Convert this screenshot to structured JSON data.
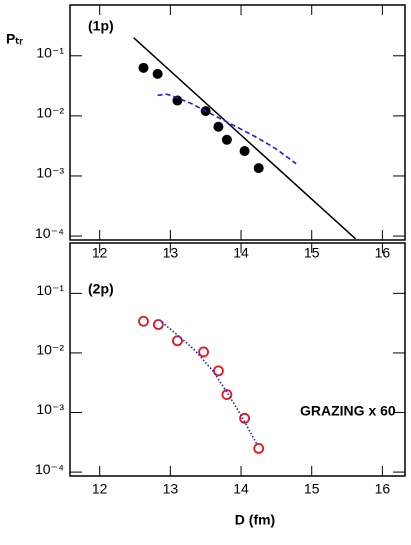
{
  "chart_data": [
    {
      "type": "scatter",
      "annotations": [
        "(1p)"
      ],
      "ylabel": "Pₜᵣ",
      "xlim": [
        11.58,
        16.32
      ],
      "xticks": [
        12,
        13,
        14,
        15,
        16
      ],
      "ylim": [
        8.6e-05,
        0.7
      ],
      "log_y": true,
      "yticks": [
        {
          "value": 0.1,
          "label": "10⁻¹"
        },
        {
          "value": 0.01,
          "label": "10⁻²"
        },
        {
          "value": 0.001,
          "label": "10⁻³"
        },
        {
          "value": 0.0001,
          "label": "10⁻⁴"
        }
      ],
      "series": [
        {
          "style": "filled-markers",
          "color": "#000000",
          "x": [
            12.62,
            12.82,
            13.1,
            13.5,
            13.68,
            13.8,
            14.05,
            14.25
          ],
          "values": [
            0.063,
            0.05,
            0.018,
            0.012,
            0.0066,
            0.004,
            0.0026,
            0.00135
          ]
        },
        {
          "style": "solid",
          "color": "#000000",
          "x": [
            12.48,
            15.62
          ],
          "values": [
            0.2,
            9e-05
          ]
        },
        {
          "style": "dashed",
          "color": "#1f1fd6",
          "x": [
            12.82,
            12.95,
            13.1,
            13.3,
            13.5,
            13.75,
            14.0,
            14.25,
            14.5,
            14.78
          ],
          "values": [
            0.022,
            0.023,
            0.02,
            0.016,
            0.012,
            0.0085,
            0.006,
            0.0042,
            0.0028,
            0.0016
          ]
        }
      ]
    },
    {
      "type": "scatter",
      "annotations": [
        "(2p)",
        "GRAZING x 60"
      ],
      "xlabel": "D (fm)",
      "xlim": [
        11.58,
        16.32
      ],
      "xticks": [
        12,
        13,
        14,
        15,
        16
      ],
      "ylim": [
        8.6e-05,
        0.7
      ],
      "log_y": true,
      "yticks": [
        {
          "value": 0.1,
          "label": "10⁻¹"
        },
        {
          "value": 0.01,
          "label": "10⁻²"
        },
        {
          "value": 0.001,
          "label": "10⁻³"
        },
        {
          "value": 0.0001,
          "label": "10⁻⁴"
        }
      ],
      "series": [
        {
          "style": "open-markers",
          "color": "#e8141e",
          "x": [
            12.62,
            12.83,
            13.1,
            13.47,
            13.68,
            13.8,
            14.05,
            14.25
          ],
          "values": [
            0.034,
            0.03,
            0.016,
            0.0104,
            0.005,
            0.002,
            0.0008,
            0.00025
          ]
        },
        {
          "style": "dotted",
          "color": "#1f1fd6",
          "x": [
            12.88,
            13.1,
            13.35,
            13.6,
            13.8,
            14.0,
            14.22
          ],
          "values": [
            0.033,
            0.02,
            0.011,
            0.005,
            0.0022,
            0.0009,
            0.0003
          ]
        }
      ]
    }
  ]
}
